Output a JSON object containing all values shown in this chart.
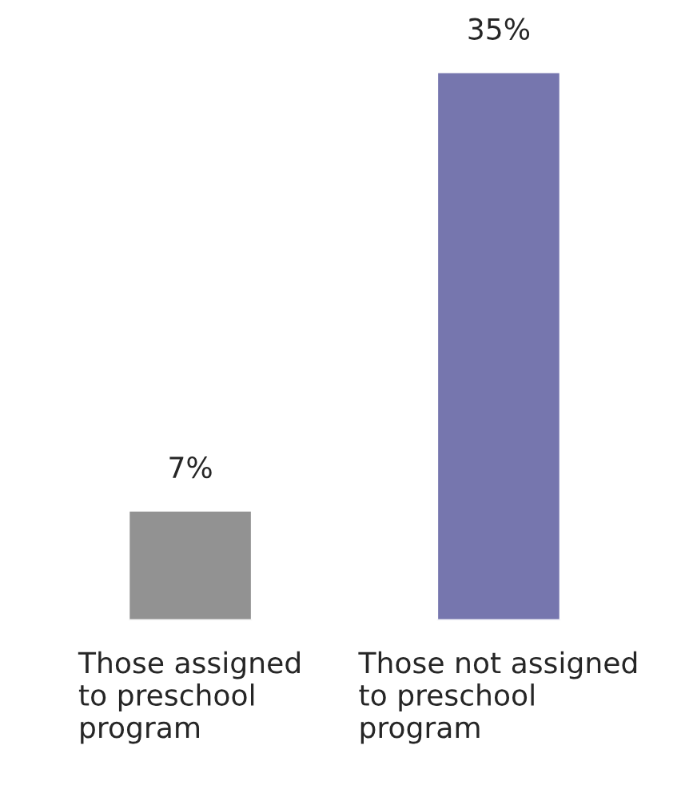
{
  "chart_data": {
    "type": "bar",
    "categories": [
      "Those assigned\nto preschool\nprogram",
      "Those not assigned\nto preschool\nprogram"
    ],
    "values": [
      7,
      35
    ],
    "colors": [
      "#929292",
      "#7676ae"
    ],
    "value_labels": [
      "7%",
      "35%"
    ]
  }
}
